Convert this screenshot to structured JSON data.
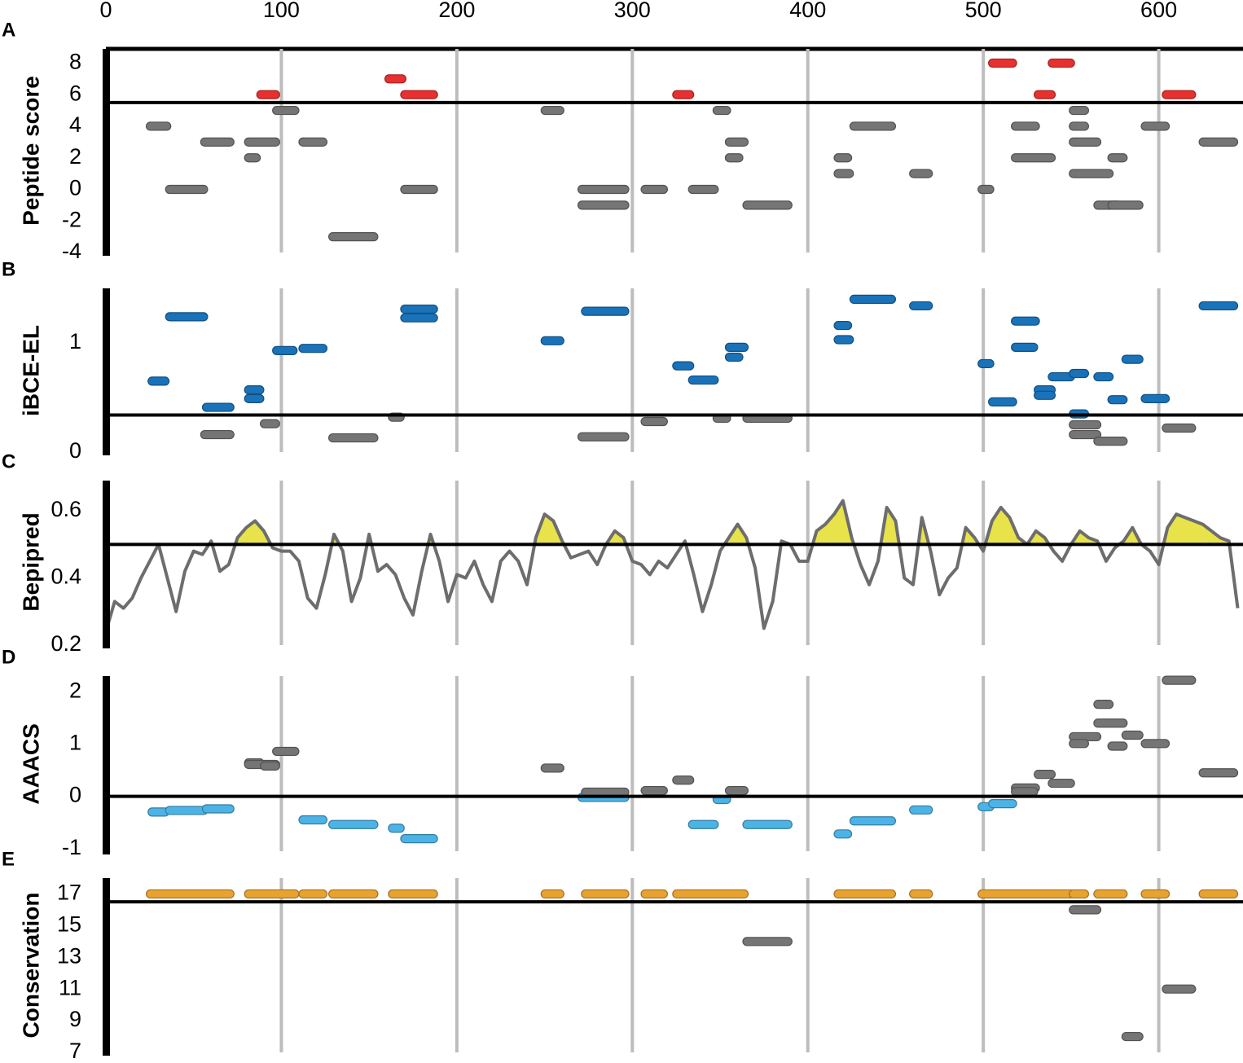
{
  "x_axis": {
    "xlim": [
      0,
      648
    ],
    "xticks": [
      0,
      100,
      200,
      300,
      400,
      500,
      600
    ]
  },
  "chart_data": [
    {
      "type": "segment",
      "panel_label": "A",
      "ylabel": "Peptide score",
      "ylim": [
        -4,
        8.9
      ],
      "yticks": [
        -4,
        -2,
        0,
        2,
        4,
        6,
        8
      ],
      "threshold": 5.5,
      "color_above": "#e8302e",
      "color_below": "#757575",
      "segments": [
        [
          86,
          99,
          6
        ],
        [
          159,
          171,
          7
        ],
        [
          168,
          189,
          6
        ],
        [
          323,
          335,
          6
        ],
        [
          503,
          519,
          8
        ],
        [
          537,
          552,
          8
        ],
        [
          529,
          541,
          6
        ],
        [
          602,
          621,
          6
        ],
        [
          23,
          37,
          4
        ],
        [
          34,
          58,
          0
        ],
        [
          54,
          73,
          3
        ],
        [
          79,
          88,
          2
        ],
        [
          79,
          99,
          3
        ],
        [
          95,
          110,
          5
        ],
        [
          110,
          126,
          3
        ],
        [
          127,
          155,
          -3
        ],
        [
          168,
          189,
          0
        ],
        [
          248,
          261,
          5
        ],
        [
          269,
          298,
          0
        ],
        [
          269,
          298,
          -1
        ],
        [
          305,
          320,
          0
        ],
        [
          332,
          349,
          0
        ],
        [
          346,
          356,
          5
        ],
        [
          353,
          366,
          3
        ],
        [
          353,
          363,
          2
        ],
        [
          363,
          391,
          -1
        ],
        [
          415,
          425,
          2
        ],
        [
          415,
          426,
          1
        ],
        [
          424,
          450,
          4
        ],
        [
          458,
          471,
          1
        ],
        [
          497,
          506,
          0
        ],
        [
          516,
          532,
          4
        ],
        [
          516,
          541,
          2
        ],
        [
          549,
          560,
          5
        ],
        [
          549,
          560,
          4
        ],
        [
          549,
          567,
          3
        ],
        [
          549,
          574,
          1
        ],
        [
          563,
          579,
          -1
        ],
        [
          571,
          582,
          2
        ],
        [
          571,
          591,
          -1
        ],
        [
          590,
          606,
          4
        ],
        [
          623,
          645,
          3
        ]
      ]
    },
    {
      "type": "segment",
      "panel_label": "B",
      "ylabel": "iBCE-EL",
      "ylim": [
        0,
        1.5
      ],
      "yticks": [
        0,
        1
      ],
      "threshold": 0.34,
      "color_above": "#1a72b8",
      "color_below": "#757575",
      "segments": [
        [
          24,
          36,
          0.65
        ],
        [
          34,
          58,
          1.24
        ],
        [
          55,
          73,
          0.41
        ],
        [
          79,
          90,
          0.57
        ],
        [
          79,
          90,
          0.49
        ],
        [
          95,
          109,
          0.93
        ],
        [
          110,
          126,
          0.95
        ],
        [
          168,
          189,
          1.31
        ],
        [
          168,
          189,
          1.23
        ],
        [
          248,
          261,
          1.02
        ],
        [
          271,
          298,
          1.29
        ],
        [
          323,
          335,
          0.79
        ],
        [
          332,
          349,
          0.66
        ],
        [
          353,
          366,
          0.96
        ],
        [
          353,
          363,
          0.87
        ],
        [
          415,
          425,
          1.16
        ],
        [
          415,
          426,
          1.03
        ],
        [
          424,
          450,
          1.4
        ],
        [
          458,
          471,
          1.34
        ],
        [
          497,
          506,
          0.81
        ],
        [
          503,
          519,
          0.46
        ],
        [
          516,
          532,
          1.2
        ],
        [
          516,
          531,
          0.96
        ],
        [
          529,
          541,
          0.57
        ],
        [
          529,
          541,
          0.52
        ],
        [
          537,
          552,
          0.69
        ],
        [
          549,
          560,
          0.72
        ],
        [
          549,
          560,
          0.35
        ],
        [
          563,
          574,
          0.69
        ],
        [
          571,
          582,
          0.48
        ],
        [
          579,
          591,
          0.85
        ],
        [
          590,
          606,
          0.49
        ],
        [
          623,
          645,
          1.34
        ],
        [
          54,
          73,
          0.16
        ],
        [
          88,
          99,
          0.26
        ],
        [
          127,
          155,
          0.13
        ],
        [
          161,
          170,
          0.32
        ],
        [
          269,
          298,
          0.14
        ],
        [
          305,
          320,
          0.28
        ],
        [
          346,
          356,
          0.31
        ],
        [
          363,
          391,
          0.31
        ],
        [
          549,
          567,
          0.25
        ],
        [
          549,
          567,
          0.16
        ],
        [
          563,
          582,
          0.1
        ],
        [
          602,
          621,
          0.22
        ]
      ]
    },
    {
      "type": "line",
      "panel_label": "C",
      "ylabel": "Bepipred",
      "ylim": [
        0.2,
        0.69
      ],
      "yticks": [
        0.2,
        0.4,
        0.6
      ],
      "threshold": 0.5,
      "color": "#6d6d6d",
      "fill_color": "#e8e34a",
      "x": [
        0,
        5,
        10,
        15,
        20,
        25,
        30,
        35,
        40,
        45,
        50,
        55,
        60,
        65,
        70,
        75,
        80,
        85,
        90,
        95,
        100,
        105,
        110,
        115,
        120,
        125,
        130,
        135,
        140,
        145,
        150,
        155,
        160,
        165,
        170,
        175,
        180,
        185,
        190,
        195,
        200,
        205,
        210,
        215,
        220,
        225,
        230,
        235,
        240,
        245,
        250,
        255,
        260,
        265,
        270,
        275,
        280,
        285,
        290,
        295,
        300,
        305,
        310,
        315,
        320,
        325,
        330,
        335,
        340,
        345,
        350,
        355,
        360,
        365,
        370,
        375,
        380,
        385,
        390,
        395,
        400,
        405,
        410,
        415,
        420,
        425,
        430,
        435,
        440,
        445,
        450,
        455,
        460,
        465,
        470,
        475,
        480,
        485,
        490,
        495,
        500,
        505,
        510,
        515,
        520,
        525,
        530,
        535,
        540,
        545,
        550,
        555,
        560,
        565,
        570,
        575,
        580,
        585,
        590,
        595,
        600,
        605,
        610,
        615,
        620,
        625,
        630,
        635,
        640,
        645
      ],
      "values": [
        0.24,
        0.33,
        0.31,
        0.34,
        0.4,
        0.45,
        0.5,
        0.4,
        0.3,
        0.42,
        0.48,
        0.47,
        0.51,
        0.42,
        0.44,
        0.52,
        0.55,
        0.57,
        0.54,
        0.49,
        0.48,
        0.48,
        0.45,
        0.34,
        0.31,
        0.41,
        0.53,
        0.48,
        0.33,
        0.4,
        0.53,
        0.42,
        0.44,
        0.41,
        0.34,
        0.29,
        0.42,
        0.53,
        0.45,
        0.33,
        0.41,
        0.4,
        0.45,
        0.38,
        0.33,
        0.45,
        0.48,
        0.45,
        0.38,
        0.52,
        0.59,
        0.57,
        0.51,
        0.46,
        0.47,
        0.48,
        0.44,
        0.5,
        0.54,
        0.52,
        0.45,
        0.44,
        0.41,
        0.45,
        0.43,
        0.47,
        0.51,
        0.41,
        0.3,
        0.38,
        0.48,
        0.52,
        0.56,
        0.52,
        0.43,
        0.25,
        0.33,
        0.51,
        0.5,
        0.45,
        0.45,
        0.54,
        0.56,
        0.59,
        0.63,
        0.52,
        0.44,
        0.38,
        0.45,
        0.61,
        0.57,
        0.4,
        0.38,
        0.58,
        0.48,
        0.35,
        0.4,
        0.43,
        0.55,
        0.52,
        0.48,
        0.57,
        0.61,
        0.58,
        0.52,
        0.5,
        0.54,
        0.52,
        0.48,
        0.45,
        0.5,
        0.54,
        0.52,
        0.51,
        0.45,
        0.49,
        0.51,
        0.55,
        0.5,
        0.48,
        0.44,
        0.55,
        0.59,
        0.58,
        0.57,
        0.56,
        0.54,
        0.52,
        0.51,
        0.31
      ]
    },
    {
      "type": "segment",
      "panel_label": "D",
      "ylabel": "AAACS",
      "ylim": [
        -1.05,
        2.3
      ],
      "yticks": [
        -1,
        0,
        1,
        2
      ],
      "threshold": 0,
      "color_above": "#757575",
      "color_below": "#4cb3e6",
      "segments": [
        [
          24,
          36,
          -0.3
        ],
        [
          34,
          58,
          -0.27
        ],
        [
          55,
          73,
          -0.24
        ],
        [
          110,
          126,
          -0.45
        ],
        [
          127,
          155,
          -0.54
        ],
        [
          161,
          170,
          -0.61
        ],
        [
          168,
          189,
          -0.81
        ],
        [
          269,
          298,
          -0.02
        ],
        [
          346,
          356,
          -0.06
        ],
        [
          332,
          349,
          -0.54
        ],
        [
          363,
          391,
          -0.54
        ],
        [
          415,
          425,
          -0.72
        ],
        [
          424,
          450,
          -0.47
        ],
        [
          458,
          471,
          -0.26
        ],
        [
          497,
          506,
          -0.2
        ],
        [
          503,
          519,
          -0.14
        ],
        [
          79,
          90,
          0.64
        ],
        [
          79,
          99,
          0.61
        ],
        [
          88,
          99,
          0.58
        ],
        [
          95,
          110,
          0.86
        ],
        [
          248,
          261,
          0.54
        ],
        [
          271,
          298,
          0.08
        ],
        [
          305,
          320,
          0.11
        ],
        [
          323,
          335,
          0.31
        ],
        [
          353,
          366,
          0.11
        ],
        [
          516,
          532,
          0.16
        ],
        [
          516,
          531,
          0.09
        ],
        [
          529,
          541,
          0.42
        ],
        [
          537,
          552,
          0.25
        ],
        [
          549,
          567,
          1.14
        ],
        [
          549,
          560,
          1.01
        ],
        [
          563,
          574,
          1.76
        ],
        [
          563,
          582,
          1.4
        ],
        [
          571,
          582,
          0.96
        ],
        [
          579,
          591,
          1.17
        ],
        [
          590,
          606,
          1.01
        ],
        [
          602,
          621,
          2.22
        ],
        [
          623,
          645,
          0.45
        ]
      ]
    },
    {
      "type": "segment",
      "panel_label": "E",
      "ylabel": "Conservation",
      "ylim": [
        7,
        18
      ],
      "yticks": [
        7,
        9,
        11,
        13,
        15,
        17
      ],
      "threshold": 16.5,
      "color_above": "#e8a22f",
      "color_below": "#757575",
      "segments": [
        [
          23,
          73,
          17
        ],
        [
          79,
          110,
          17
        ],
        [
          110,
          126,
          17
        ],
        [
          127,
          155,
          17
        ],
        [
          161,
          189,
          17
        ],
        [
          248,
          261,
          17
        ],
        [
          271,
          298,
          17
        ],
        [
          305,
          320,
          17
        ],
        [
          323,
          366,
          17
        ],
        [
          415,
          450,
          17
        ],
        [
          458,
          471,
          17
        ],
        [
          497,
          552,
          17
        ],
        [
          549,
          560,
          17
        ],
        [
          563,
          582,
          17
        ],
        [
          590,
          606,
          17
        ],
        [
          623,
          645,
          17
        ],
        [
          549,
          567,
          16
        ],
        [
          363,
          391,
          14
        ],
        [
          602,
          621,
          11
        ],
        [
          579,
          591,
          8
        ]
      ]
    }
  ]
}
